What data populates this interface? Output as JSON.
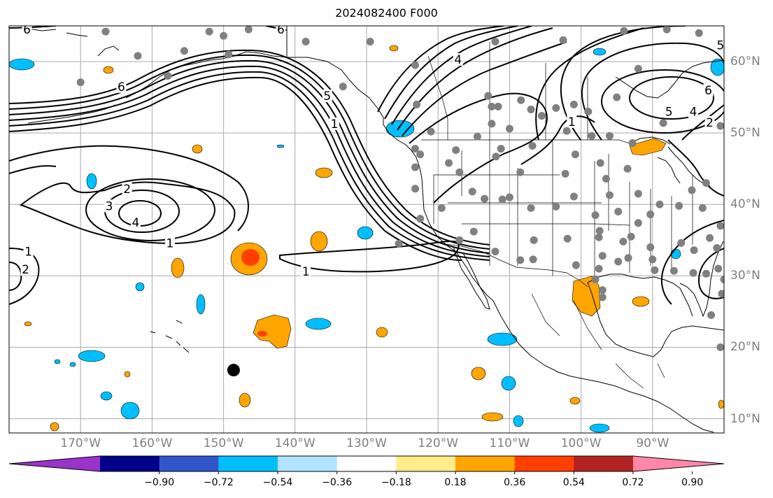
{
  "title": "2024082400 F000",
  "map": {
    "lon_range": [
      -180,
      -80
    ],
    "lat_range": [
      8,
      65
    ],
    "gridlines": true,
    "lon_ticks": [
      {
        "lon": -170,
        "label": "170°W"
      },
      {
        "lon": -160,
        "label": "160°W"
      },
      {
        "lon": -150,
        "label": "150°W"
      },
      {
        "lon": -140,
        "label": "140°W"
      },
      {
        "lon": -130,
        "label": "130°W"
      },
      {
        "lon": -120,
        "label": "120°W"
      },
      {
        "lon": -110,
        "label": "110°W"
      },
      {
        "lon": -100,
        "label": "100°W"
      },
      {
        "lon": -90,
        "label": "90°W"
      }
    ],
    "lat_ticks": [
      {
        "lat": 10,
        "label": "10°N"
      },
      {
        "lat": 20,
        "label": "20°N"
      },
      {
        "lat": 30,
        "label": "30°N"
      },
      {
        "lat": 40,
        "label": "40°N"
      },
      {
        "lat": 50,
        "label": "50°N"
      },
      {
        "lat": 60,
        "label": "60°N"
      }
    ],
    "contour_labels": [
      {
        "text": "6",
        "lon": -177.5,
        "lat": 64.5
      },
      {
        "text": "6",
        "lon": -142.0,
        "lat": 64.5
      },
      {
        "text": "6",
        "lon": -164.3,
        "lat": 56.5
      },
      {
        "text": "5",
        "lon": -135.5,
        "lat": 55.2
      },
      {
        "text": "1",
        "lon": -134.5,
        "lat": 51.3
      },
      {
        "text": "4",
        "lon": -117.2,
        "lat": 60.3
      },
      {
        "text": "2",
        "lon": -163.5,
        "lat": 42.2
      },
      {
        "text": "3",
        "lon": -166.0,
        "lat": 39.8
      },
      {
        "text": "4",
        "lon": -162.3,
        "lat": 37.5
      },
      {
        "text": "1",
        "lon": -157.5,
        "lat": 34.6
      },
      {
        "text": "1",
        "lon": -177.3,
        "lat": 33.4
      },
      {
        "text": "2",
        "lon": -177.7,
        "lat": 30.9
      },
      {
        "text": "1",
        "lon": -138.5,
        "lat": 30.6
      },
      {
        "text": "1",
        "lon": -101.3,
        "lat": 51.6
      },
      {
        "text": "5",
        "lon": -80.5,
        "lat": 62.3
      },
      {
        "text": "5",
        "lon": -87.7,
        "lat": 53.0
      },
      {
        "text": "4",
        "lon": -84.3,
        "lat": 53.0
      },
      {
        "text": "2",
        "lon": -82.0,
        "lat": 51.5
      },
      {
        "text": "6",
        "lon": -82.2,
        "lat": 56.0
      }
    ],
    "stations": [
      [
        -166.5,
        64.2
      ],
      [
        -155.5,
        61.5
      ],
      [
        -152.0,
        64.2
      ],
      [
        -150.0,
        63.6
      ],
      [
        -146.5,
        64.5
      ],
      [
        -162.0,
        60.8
      ],
      [
        -149.3,
        61.0
      ],
      [
        -138.5,
        62.8
      ],
      [
        -129.5,
        62.8
      ],
      [
        -123.2,
        59.5
      ],
      [
        -112.0,
        62.8
      ],
      [
        -102.5,
        63.0
      ],
      [
        -94.0,
        64.3
      ],
      [
        -88.0,
        64.5
      ],
      [
        -83.5,
        64.0
      ],
      [
        -170.0,
        57.1
      ],
      [
        -157.8,
        58.0
      ],
      [
        -133.3,
        56.5
      ],
      [
        -113.0,
        55.2
      ],
      [
        -112.5,
        53.7
      ],
      [
        -111.6,
        53.7
      ],
      [
        -108.4,
        54.6
      ],
      [
        -107.0,
        53.3
      ],
      [
        -105.5,
        52.4
      ],
      [
        -103.5,
        53.5
      ],
      [
        -101.0,
        54.0
      ],
      [
        -99.0,
        53.0
      ],
      [
        -95.0,
        55.0
      ],
      [
        -92.0,
        59.0
      ],
      [
        -88.5,
        51.4
      ],
      [
        -80.5,
        51.0
      ],
      [
        -123.0,
        54.0
      ],
      [
        -121.0,
        50.2
      ],
      [
        -114.5,
        49.5
      ],
      [
        -112.5,
        51.3
      ],
      [
        -110.0,
        50.6
      ],
      [
        -102.0,
        50.3
      ],
      [
        -98.5,
        49.6
      ],
      [
        -96.0,
        49.6
      ],
      [
        -92.8,
        48.6
      ],
      [
        -123.2,
        47.8
      ],
      [
        -117.5,
        47.6
      ],
      [
        -111.2,
        47.8
      ],
      [
        -106.8,
        48.2
      ],
      [
        -100.8,
        47.0
      ],
      [
        -97.3,
        45.8
      ],
      [
        -123.2,
        45.2
      ],
      [
        -117.0,
        44.5
      ],
      [
        -108.5,
        44.5
      ],
      [
        -102.2,
        44.3
      ],
      [
        -96.5,
        43.6
      ],
      [
        -93.5,
        45.0
      ],
      [
        -123.2,
        42.2
      ],
      [
        -115.2,
        41.8
      ],
      [
        -110.0,
        41.0
      ],
      [
        -101.0,
        41.1
      ],
      [
        -96.0,
        41.3
      ],
      [
        -92.0,
        41.5
      ],
      [
        -89.0,
        40.0
      ],
      [
        -86.3,
        39.8
      ],
      [
        -84.5,
        42.0
      ],
      [
        -82.5,
        43.0
      ],
      [
        -83.0,
        39.5
      ],
      [
        -113.5,
        40.8
      ],
      [
        -111.0,
        40.7
      ],
      [
        -107.0,
        39.5
      ],
      [
        -103.5,
        39.7
      ],
      [
        -98.0,
        38.5
      ],
      [
        -94.8,
        39.0
      ],
      [
        -90.3,
        38.6
      ],
      [
        -122.5,
        38.0
      ],
      [
        -119.5,
        39.5
      ],
      [
        -117.0,
        35.0
      ],
      [
        -115.0,
        36.2
      ],
      [
        -112.0,
        33.4
      ],
      [
        -108.5,
        32.2
      ],
      [
        -106.6,
        35.0
      ],
      [
        -106.7,
        32.3
      ],
      [
        -101.9,
        35.2
      ],
      [
        -97.5,
        35.4
      ],
      [
        -97.4,
        36.3
      ],
      [
        -94.1,
        34.8
      ],
      [
        -93.0,
        35.5
      ],
      [
        -90.3,
        34.0
      ],
      [
        -86.0,
        34.6
      ],
      [
        -84.2,
        33.6
      ],
      [
        -82.0,
        35.3
      ],
      [
        -81.0,
        33.9
      ],
      [
        -80.5,
        37.0
      ],
      [
        -80.8,
        31.0
      ],
      [
        -82.5,
        30.3
      ],
      [
        -84.3,
        30.4
      ],
      [
        -87.0,
        30.7
      ],
      [
        -90.0,
        32.3
      ],
      [
        -89.7,
        30.8
      ],
      [
        -93.4,
        32.5
      ],
      [
        -94.8,
        32.0
      ],
      [
        -97.0,
        32.8
      ],
      [
        -97.5,
        31.0
      ],
      [
        -100.7,
        31.5
      ],
      [
        -98.0,
        29.5
      ],
      [
        -97.0,
        28.0
      ],
      [
        -97.0,
        27.0
      ],
      [
        -122.5,
        47.0
      ],
      [
        -111.9,
        46.7
      ],
      [
        -118.5,
        45.8
      ],
      [
        -92.0,
        37.4
      ],
      [
        -125.5,
        34.5
      ],
      [
        -80.5,
        20.0
      ],
      [
        -80.3,
        27.5
      ],
      [
        -81.8,
        24.5
      ],
      [
        -80.0,
        29.5
      ]
    ],
    "typhoon_marker": {
      "lon": -148.6,
      "lat": 16.8
    }
  },
  "colorbar": {
    "colors": [
      "#9933cc",
      "#000088",
      "#3355cc",
      "#00bfff",
      "#b2e3ff",
      "#ffffff",
      "#ffec8b",
      "#ffa500",
      "#ff3f00",
      "#b22222",
      "#ff88aa"
    ],
    "tick_labels": [
      "−0.90",
      "−0.72",
      "−0.54",
      "−0.36",
      "−0.18",
      "0.18",
      "0.36",
      "0.54",
      "0.72",
      "0.90"
    ]
  }
}
